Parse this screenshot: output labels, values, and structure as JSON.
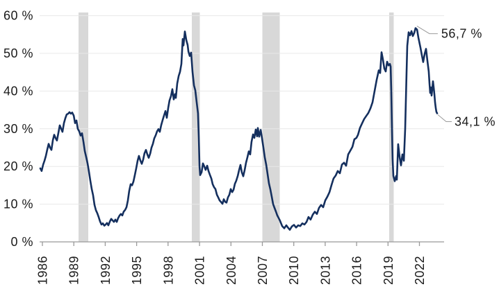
{
  "chart_data": {
    "type": "line",
    "title": "",
    "xlabel": "",
    "ylabel": "",
    "x_axis": {
      "ticks": [
        1986,
        1989,
        1992,
        1995,
        1998,
        2001,
        2004,
        2007,
        2010,
        2013,
        2016,
        2019,
        2022
      ]
    },
    "y_axis": {
      "min": 0,
      "max": 60,
      "tick_values": [
        0,
        10,
        20,
        30,
        40,
        50,
        60
      ],
      "tick_labels": [
        "0 %",
        "10 %",
        "20 %",
        "30 %",
        "40 %",
        "50 %",
        "60 %"
      ]
    },
    "grid": true,
    "legend": "none",
    "recession_bands": [
      [
        1989.45,
        1990.38
      ],
      [
        2000.27,
        2001.03
      ],
      [
        2007.0,
        2008.66
      ],
      [
        2019.11,
        2019.54
      ]
    ],
    "annotations": [
      {
        "label": "56,7 %",
        "year": 2021.63,
        "value": 56.7
      },
      {
        "label": "34,1 %",
        "year": 2023.69,
        "value": 34.1
      }
    ],
    "series": [
      {
        "name": "share-percent",
        "points": [
          [
            1985.8,
            19.5
          ],
          [
            1985.93,
            18.8
          ],
          [
            1986.07,
            20.5
          ],
          [
            1986.2,
            21.5
          ],
          [
            1986.33,
            22.8
          ],
          [
            1986.46,
            24.4
          ],
          [
            1986.6,
            26.0
          ],
          [
            1986.73,
            25.0
          ],
          [
            1986.86,
            24.4
          ],
          [
            1987.0,
            27.0
          ],
          [
            1987.13,
            28.4
          ],
          [
            1987.26,
            27.5
          ],
          [
            1987.39,
            26.9
          ],
          [
            1987.53,
            29.0
          ],
          [
            1987.66,
            30.9
          ],
          [
            1987.79,
            30.0
          ],
          [
            1987.92,
            29.2
          ],
          [
            1988.06,
            31.5
          ],
          [
            1988.19,
            32.8
          ],
          [
            1988.32,
            33.8
          ],
          [
            1988.46,
            34.0
          ],
          [
            1988.59,
            34.4
          ],
          [
            1988.72,
            34.0
          ],
          [
            1988.85,
            34.3
          ],
          [
            1988.99,
            33.5
          ],
          [
            1989.12,
            31.5
          ],
          [
            1989.25,
            32.2
          ],
          [
            1989.38,
            30.0
          ],
          [
            1989.52,
            29.3
          ],
          [
            1989.65,
            28.2
          ],
          [
            1989.78,
            28.8
          ],
          [
            1989.92,
            26.5
          ],
          [
            1990.05,
            24.1
          ],
          [
            1990.18,
            22.5
          ],
          [
            1990.31,
            20.8
          ],
          [
            1990.45,
            18.5
          ],
          [
            1990.58,
            16.2
          ],
          [
            1990.71,
            14.0
          ],
          [
            1990.84,
            12.4
          ],
          [
            1990.98,
            9.8
          ],
          [
            1991.11,
            8.4
          ],
          [
            1991.24,
            7.6
          ],
          [
            1991.38,
            6.5
          ],
          [
            1991.51,
            5.4
          ],
          [
            1991.64,
            4.6
          ],
          [
            1991.77,
            4.9
          ],
          [
            1991.91,
            4.3
          ],
          [
            1992.04,
            4.6
          ],
          [
            1992.17,
            5.0
          ],
          [
            1992.3,
            4.4
          ],
          [
            1992.44,
            5.4
          ],
          [
            1992.57,
            6.1
          ],
          [
            1992.7,
            5.7
          ],
          [
            1992.83,
            5.3
          ],
          [
            1992.97,
            5.9
          ],
          [
            1993.1,
            5.3
          ],
          [
            1993.23,
            6.3
          ],
          [
            1993.37,
            7.0
          ],
          [
            1993.5,
            7.4
          ],
          [
            1993.63,
            7.0
          ],
          [
            1993.76,
            8.0
          ],
          [
            1993.9,
            8.5
          ],
          [
            1994.03,
            9.2
          ],
          [
            1994.16,
            11.0
          ],
          [
            1994.29,
            13.5
          ],
          [
            1994.43,
            15.3
          ],
          [
            1994.56,
            15.0
          ],
          [
            1994.69,
            16.0
          ],
          [
            1994.83,
            17.8
          ],
          [
            1994.96,
            19.5
          ],
          [
            1995.09,
            21.5
          ],
          [
            1995.22,
            22.8
          ],
          [
            1995.36,
            21.5
          ],
          [
            1995.49,
            20.7
          ],
          [
            1995.62,
            21.8
          ],
          [
            1995.75,
            23.5
          ],
          [
            1995.89,
            24.4
          ],
          [
            1996.02,
            23.2
          ],
          [
            1996.15,
            22.3
          ],
          [
            1996.29,
            23.4
          ],
          [
            1996.42,
            25.0
          ],
          [
            1996.55,
            26.0
          ],
          [
            1996.68,
            27.4
          ],
          [
            1996.82,
            28.3
          ],
          [
            1996.95,
            29.3
          ],
          [
            1997.08,
            29.9
          ],
          [
            1997.21,
            29.2
          ],
          [
            1997.35,
            31.0
          ],
          [
            1997.48,
            32.3
          ],
          [
            1997.61,
            33.5
          ],
          [
            1997.75,
            34.7
          ],
          [
            1997.88,
            32.9
          ],
          [
            1998.01,
            35.5
          ],
          [
            1998.14,
            37.5
          ],
          [
            1998.28,
            38.7
          ],
          [
            1998.41,
            40.5
          ],
          [
            1998.54,
            37.8
          ],
          [
            1998.67,
            39.2
          ],
          [
            1998.74,
            38.2
          ],
          [
            1998.87,
            42.0
          ],
          [
            1999.01,
            44.0
          ],
          [
            1999.14,
            45.1
          ],
          [
            1999.27,
            47.2
          ],
          [
            1999.4,
            53.8
          ],
          [
            1999.47,
            52.1
          ],
          [
            1999.6,
            55.8
          ],
          [
            1999.74,
            53.5
          ],
          [
            1999.87,
            52.2
          ],
          [
            1999.94,
            50.5
          ],
          [
            2000.07,
            49.3
          ],
          [
            2000.2,
            50.2
          ],
          [
            2000.33,
            45.1
          ],
          [
            2000.47,
            41.5
          ],
          [
            2000.6,
            40.2
          ],
          [
            2000.73,
            37.0
          ],
          [
            2000.86,
            34.1
          ],
          [
            2000.93,
            28.0
          ],
          [
            2001.0,
            20.0
          ],
          [
            2001.06,
            17.7
          ],
          [
            2001.2,
            18.5
          ],
          [
            2001.33,
            20.8
          ],
          [
            2001.46,
            20.0
          ],
          [
            2001.59,
            19.1
          ],
          [
            2001.73,
            20.2
          ],
          [
            2001.86,
            18.8
          ],
          [
            2001.99,
            17.8
          ],
          [
            2002.13,
            16.8
          ],
          [
            2002.26,
            15.3
          ],
          [
            2002.39,
            14.5
          ],
          [
            2002.52,
            14.0
          ],
          [
            2002.66,
            12.5
          ],
          [
            2002.79,
            11.8
          ],
          [
            2002.92,
            11.0
          ],
          [
            2003.05,
            10.6
          ],
          [
            2003.19,
            10.1
          ],
          [
            2003.32,
            11.3
          ],
          [
            2003.45,
            10.6
          ],
          [
            2003.58,
            10.4
          ],
          [
            2003.72,
            11.8
          ],
          [
            2003.85,
            12.5
          ],
          [
            2003.98,
            14.0
          ],
          [
            2004.12,
            13.2
          ],
          [
            2004.25,
            13.8
          ],
          [
            2004.38,
            15.4
          ],
          [
            2004.51,
            16.2
          ],
          [
            2004.65,
            17.5
          ],
          [
            2004.78,
            19.0
          ],
          [
            2004.91,
            20.4
          ],
          [
            2005.04,
            18.5
          ],
          [
            2005.18,
            17.4
          ],
          [
            2005.31,
            19.0
          ],
          [
            2005.44,
            21.0
          ],
          [
            2005.58,
            22.5
          ],
          [
            2005.71,
            24.0
          ],
          [
            2005.84,
            23.2
          ],
          [
            2005.97,
            26.5
          ],
          [
            2006.11,
            28.5
          ],
          [
            2006.24,
            27.6
          ],
          [
            2006.37,
            29.8
          ],
          [
            2006.5,
            28.0
          ],
          [
            2006.57,
            30.2
          ],
          [
            2006.7,
            27.9
          ],
          [
            2006.84,
            29.7
          ],
          [
            2006.97,
            27.5
          ],
          [
            2007.1,
            25.0
          ],
          [
            2007.23,
            22.5
          ],
          [
            2007.37,
            20.5
          ],
          [
            2007.5,
            18.0
          ],
          [
            2007.63,
            15.5
          ],
          [
            2007.76,
            14.0
          ],
          [
            2007.9,
            12.0
          ],
          [
            2008.03,
            10.0
          ],
          [
            2008.16,
            9.0
          ],
          [
            2008.3,
            8.0
          ],
          [
            2008.43,
            7.0
          ],
          [
            2008.56,
            6.3
          ],
          [
            2008.69,
            5.6
          ],
          [
            2008.89,
            4.2
          ],
          [
            2009.09,
            3.6
          ],
          [
            2009.29,
            4.4
          ],
          [
            2009.42,
            3.9
          ],
          [
            2009.62,
            3.2
          ],
          [
            2009.82,
            4.1
          ],
          [
            2010.02,
            4.5
          ],
          [
            2010.22,
            3.8
          ],
          [
            2010.42,
            4.4
          ],
          [
            2010.62,
            4.2
          ],
          [
            2010.82,
            4.9
          ],
          [
            2011.02,
            4.6
          ],
          [
            2011.22,
            5.3
          ],
          [
            2011.41,
            6.6
          ],
          [
            2011.61,
            5.9
          ],
          [
            2011.81,
            7.2
          ],
          [
            2012.01,
            8.0
          ],
          [
            2012.21,
            7.4
          ],
          [
            2012.41,
            9.0
          ],
          [
            2012.61,
            9.8
          ],
          [
            2012.81,
            9.2
          ],
          [
            2013.01,
            11.0
          ],
          [
            2013.21,
            12.0
          ],
          [
            2013.41,
            13.2
          ],
          [
            2013.6,
            15.0
          ],
          [
            2013.8,
            16.8
          ],
          [
            2014.0,
            17.6
          ],
          [
            2014.2,
            18.8
          ],
          [
            2014.4,
            18.2
          ],
          [
            2014.6,
            20.5
          ],
          [
            2014.8,
            21.0
          ],
          [
            2015.0,
            20.2
          ],
          [
            2015.2,
            23.2
          ],
          [
            2015.4,
            24.2
          ],
          [
            2015.6,
            25.2
          ],
          [
            2015.79,
            27.2
          ],
          [
            2015.99,
            27.6
          ],
          [
            2016.13,
            28.4
          ],
          [
            2016.32,
            30.2
          ],
          [
            2016.52,
            31.4
          ],
          [
            2016.72,
            32.6
          ],
          [
            2016.92,
            33.4
          ],
          [
            2017.12,
            34.2
          ],
          [
            2017.32,
            35.4
          ],
          [
            2017.52,
            37.0
          ],
          [
            2017.72,
            40.0
          ],
          [
            2017.92,
            43.0
          ],
          [
            2018.12,
            45.5
          ],
          [
            2018.25,
            44.8
          ],
          [
            2018.38,
            50.3
          ],
          [
            2018.51,
            48.5
          ],
          [
            2018.65,
            46.0
          ],
          [
            2018.78,
            45.2
          ],
          [
            2018.91,
            47.8
          ],
          [
            2019.05,
            46.8
          ],
          [
            2019.18,
            47.2
          ],
          [
            2019.25,
            46.5
          ],
          [
            2019.31,
            40.0
          ],
          [
            2019.38,
            30.0
          ],
          [
            2019.44,
            22.0
          ],
          [
            2019.51,
            17.5
          ],
          [
            2019.64,
            16.1
          ],
          [
            2019.78,
            17.5
          ],
          [
            2019.84,
            16.5
          ],
          [
            2019.97,
            25.9
          ],
          [
            2020.11,
            22.5
          ],
          [
            2020.24,
            20.3
          ],
          [
            2020.37,
            23.2
          ],
          [
            2020.51,
            21.5
          ],
          [
            2020.64,
            30.0
          ],
          [
            2020.77,
            45.0
          ],
          [
            2020.84,
            52.0
          ],
          [
            2020.97,
            55.6
          ],
          [
            2021.1,
            54.8
          ],
          [
            2021.24,
            55.9
          ],
          [
            2021.37,
            54.6
          ],
          [
            2021.5,
            55.4
          ],
          [
            2021.63,
            56.7
          ],
          [
            2021.77,
            56.3
          ],
          [
            2021.9,
            54.2
          ],
          [
            2022.1,
            51.5
          ],
          [
            2022.23,
            49.5
          ],
          [
            2022.36,
            47.7
          ],
          [
            2022.5,
            49.9
          ],
          [
            2022.63,
            51.2
          ],
          [
            2022.76,
            48.0
          ],
          [
            2022.89,
            45.2
          ],
          [
            2022.96,
            42.0
          ],
          [
            2023.03,
            39.5
          ],
          [
            2023.09,
            41.0
          ],
          [
            2023.16,
            38.8
          ],
          [
            2023.23,
            40.8
          ],
          [
            2023.29,
            42.6
          ],
          [
            2023.36,
            41.0
          ],
          [
            2023.43,
            39.0
          ],
          [
            2023.49,
            37.0
          ],
          [
            2023.56,
            35.5
          ],
          [
            2023.62,
            34.5
          ],
          [
            2023.69,
            34.1
          ]
        ]
      }
    ],
    "colors": {
      "line": "#142f5e",
      "gridline": "#e8e8e8",
      "recession_band": "#d8d8d8",
      "axis": "#999999",
      "leader_line": "#9b9b9b",
      "label_text": "#1a1a1a",
      "background": "#ffffff"
    }
  }
}
